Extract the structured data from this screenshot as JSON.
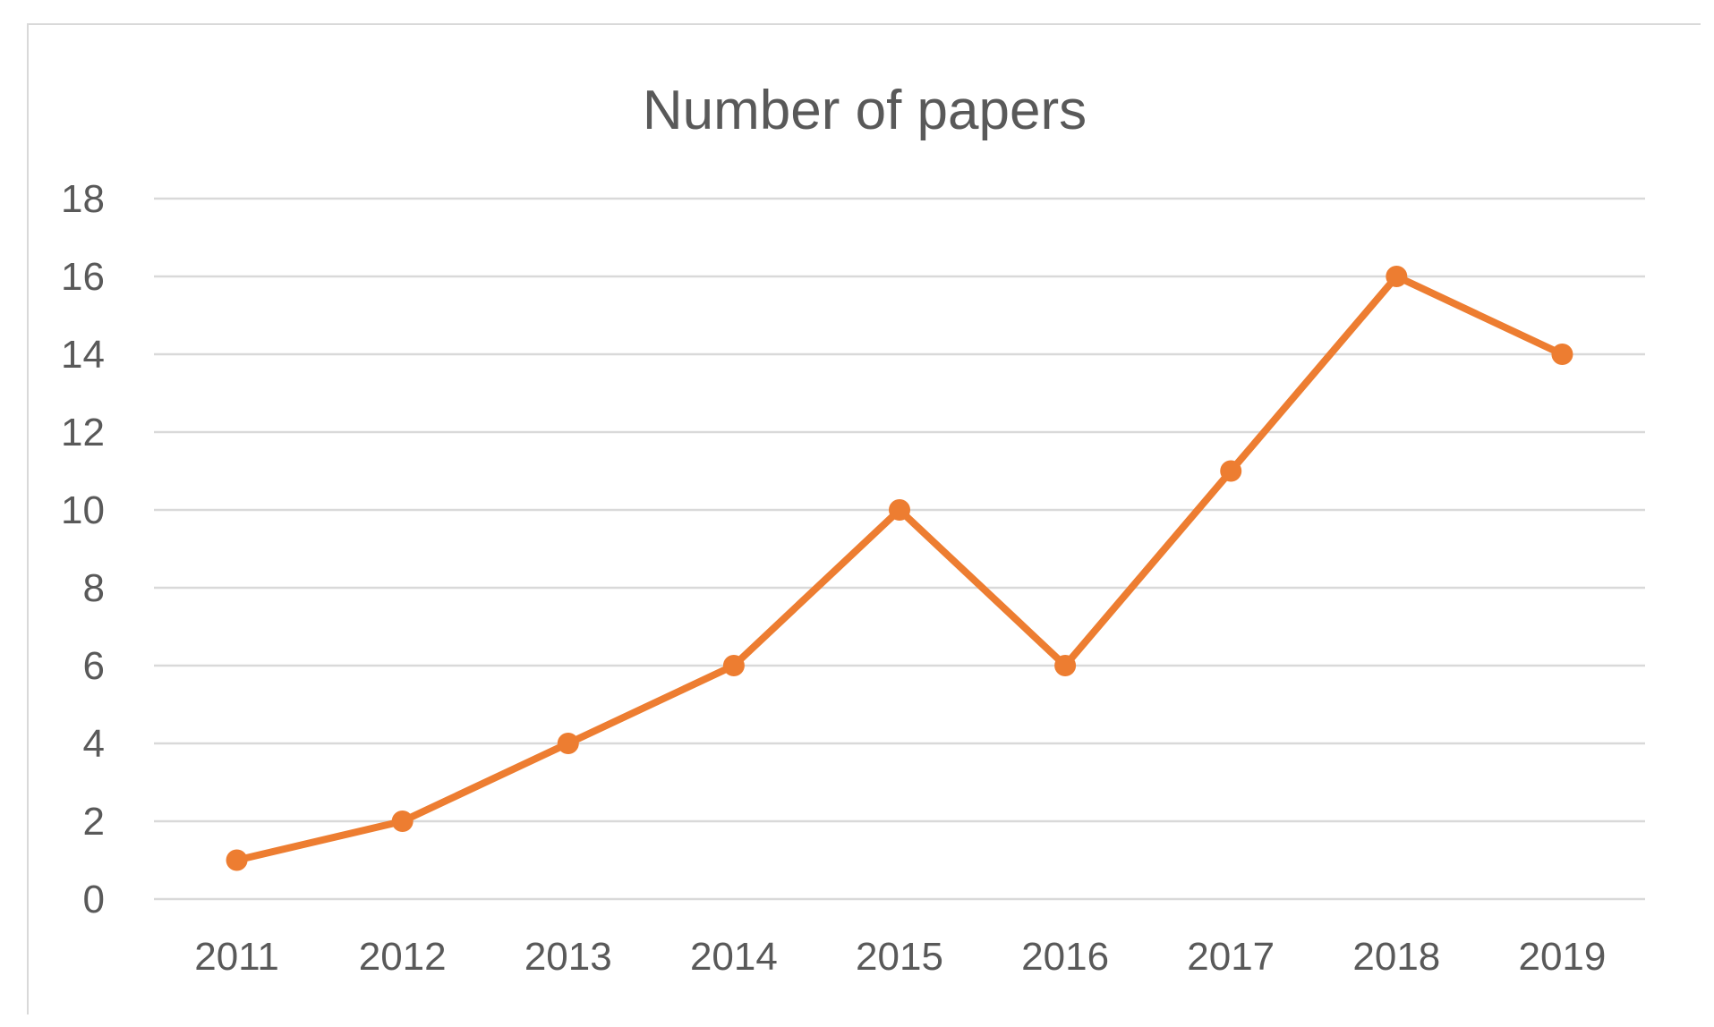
{
  "chart_data": {
    "type": "line",
    "title": "Number of papers",
    "xlabel": "",
    "ylabel": "",
    "categories": [
      "2011",
      "2012",
      "2013",
      "2014",
      "2015",
      "2016",
      "2017",
      "2018",
      "2019"
    ],
    "series": [
      {
        "values": [
          1,
          2,
          4,
          6,
          10,
          6,
          11,
          16,
          14
        ],
        "color": "#ed7d31"
      }
    ],
    "ylim": [
      0,
      18
    ],
    "yticks": [
      "0",
      "2",
      "4",
      "6",
      "8",
      "10",
      "12",
      "14",
      "16",
      "18"
    ],
    "grid": true,
    "legend": "none",
    "markers": true
  }
}
